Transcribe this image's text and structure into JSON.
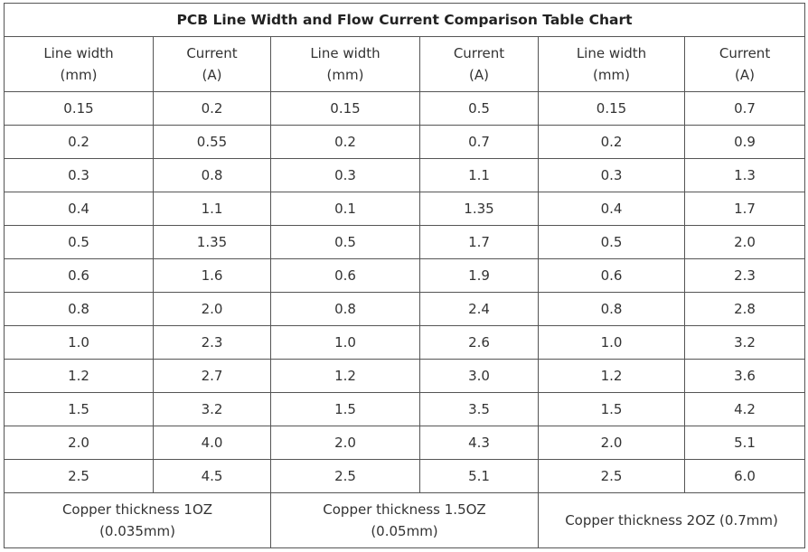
{
  "title": "PCB Line Width and Flow Current Comparison Table Chart",
  "headers": [
    {
      "line1": "Line width",
      "line2": "(mm)"
    },
    {
      "line1": "Current",
      "line2": "(A)"
    },
    {
      "line1": "Line width",
      "line2": "(mm)"
    },
    {
      "line1": "Current",
      "line2": "(A)"
    },
    {
      "line1": "Line width",
      "line2": "(mm)"
    },
    {
      "line1": "Current",
      "line2": "(A)"
    }
  ],
  "rows": [
    [
      "0.15",
      "0.2",
      "0.15",
      "0.5",
      "0.15",
      "0.7"
    ],
    [
      "0.2",
      "0.55",
      "0.2",
      "0.7",
      "0.2",
      "0.9"
    ],
    [
      "0.3",
      "0.8",
      "0.3",
      "1.1",
      "0.3",
      "1.3"
    ],
    [
      "0.4",
      "1.1",
      "0.1",
      "1.35",
      "0.4",
      "1.7"
    ],
    [
      "0.5",
      "1.35",
      "0.5",
      "1.7",
      "0.5",
      "2.0"
    ],
    [
      "0.6",
      "1.6",
      "0.6",
      "1.9",
      "0.6",
      "2.3"
    ],
    [
      "0.8",
      "2.0",
      "0.8",
      "2.4",
      "0.8",
      "2.8"
    ],
    [
      "1.0",
      "2.3",
      "1.0",
      "2.6",
      "1.0",
      "3.2"
    ],
    [
      "1.2",
      "2.7",
      "1.2",
      "3.0",
      "1.2",
      "3.6"
    ],
    [
      "1.5",
      "3.2",
      "1.5",
      "3.5",
      "1.5",
      "4.2"
    ],
    [
      "2.0",
      "4.0",
      "2.0",
      "4.3",
      "2.0",
      "5.1"
    ],
    [
      "2.5",
      "4.5",
      "2.5",
      "5.1",
      "2.5",
      "6.0"
    ]
  ],
  "footer": [
    {
      "line1": "Copper thickness 1OZ",
      "line2": "(0.035mm)"
    },
    {
      "line1": "Copper thickness 1.5OZ",
      "line2": "(0.05mm)"
    },
    {
      "line1": "Copper thickness 2OZ (0.7mm)",
      "line2": ""
    }
  ]
}
